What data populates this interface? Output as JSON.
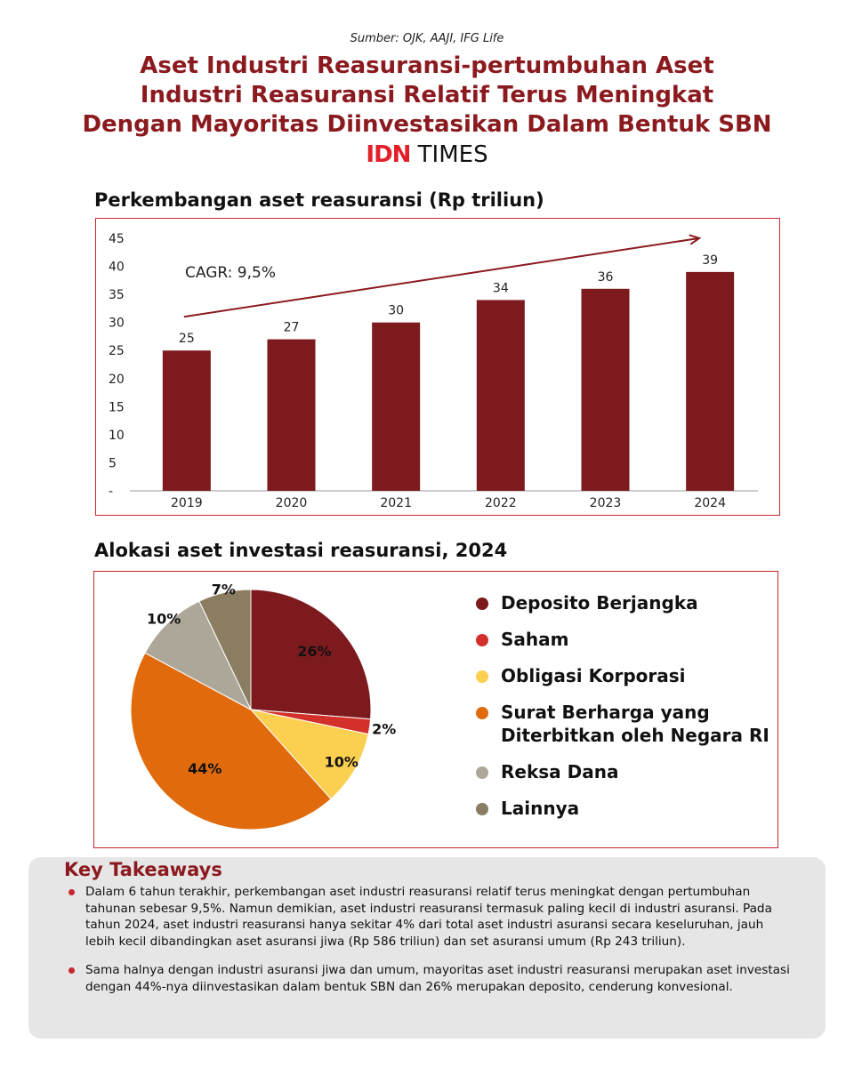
{
  "source": "Sumber: OJK, AAJI, IFG Life",
  "title_lines": [
    "Aset Industri Reasuransi-pertumbuhan Aset",
    "Industri Reasuransi Relatif Terus Meningkat",
    "Dengan Mayoritas Diinvestasikan Dalam Bentuk SBN"
  ],
  "logo": {
    "idn": "IDN",
    "times": "TIMES"
  },
  "colors": {
    "brand_red": "#8b1a1f",
    "frame_red": "#c8262e",
    "bar": "#7d1a1e",
    "logo_red": "#e3202a"
  },
  "chart_data": [
    {
      "type": "bar",
      "title": "Perkembangan aset reasuransi (Rp triliun)",
      "categories": [
        "2019",
        "2020",
        "2021",
        "2022",
        "2023",
        "2024"
      ],
      "values": [
        25,
        27,
        30,
        34,
        36,
        39
      ],
      "y_ticks": [
        "-",
        "5",
        "10",
        "15",
        "20",
        "25",
        "30",
        "35",
        "40",
        "45"
      ],
      "ylim": [
        0,
        45
      ],
      "annotation": "CAGR: 9,5%",
      "grid": false
    },
    {
      "type": "pie",
      "title": "Alokasi aset investasi reasuransi, 2024",
      "slices": [
        {
          "name": "Deposito Berjangka",
          "value": 26,
          "label": "26%",
          "color": "#7d1a1e"
        },
        {
          "name": "Saham",
          "value": 2,
          "label": "2%",
          "color": "#d4302b"
        },
        {
          "name": "Obligasi Korporasi",
          "value": 10,
          "label": "10%",
          "color": "#fbcf4f"
        },
        {
          "name": "Surat Berharga yang Diterbitkan oleh Negara RI",
          "value": 44,
          "label": "44%",
          "color": "#e06a0c"
        },
        {
          "name": "Reksa Dana",
          "value": 10,
          "label": "10%",
          "color": "#aca798"
        },
        {
          "name": "Lainnya",
          "value": 7,
          "label": "7%",
          "color": "#8a7d62"
        }
      ],
      "legend_position": "right"
    }
  ],
  "legend": [
    {
      "label": "Deposito Berjangka",
      "color": "#7d1a1e"
    },
    {
      "label": "Saham",
      "color": "#d4302b"
    },
    {
      "label": "Obligasi Korporasi",
      "color": "#fbcf4f"
    },
    {
      "label": "Surat Berharga yang Diterbitkan oleh Negara RI",
      "color": "#e06a0c"
    },
    {
      "label": "Reksa Dana",
      "color": "#aca798"
    },
    {
      "label": "Lainnya",
      "color": "#8a7d62"
    }
  ],
  "takeaways": {
    "heading": "Key Takeaways",
    "items": [
      "Dalam 6 tahun terakhir, perkembangan aset industri reasuransi relatif terus meningkat dengan pertumbuhan tahunan sebesar 9,5%. Namun demikian, aset industri reasuransi termasuk paling kecil di industri asuransi. Pada tahun 2024, aset industri reasuransi hanya sekitar 4% dari total aset industri asuransi secara keseluruhan, jauh lebih kecil dibandingkan aset asuransi jiwa (Rp 586 triliun) dan set asuransi umum (Rp 243 triliun).",
      "Sama halnya dengan industri asuransi jiwa dan umum, mayoritas aset industri reasuransi merupakan aset investasi dengan 44%-nya diinvestasikan dalam bentuk SBN dan 26% merupakan deposito, cenderung konvesional."
    ]
  }
}
